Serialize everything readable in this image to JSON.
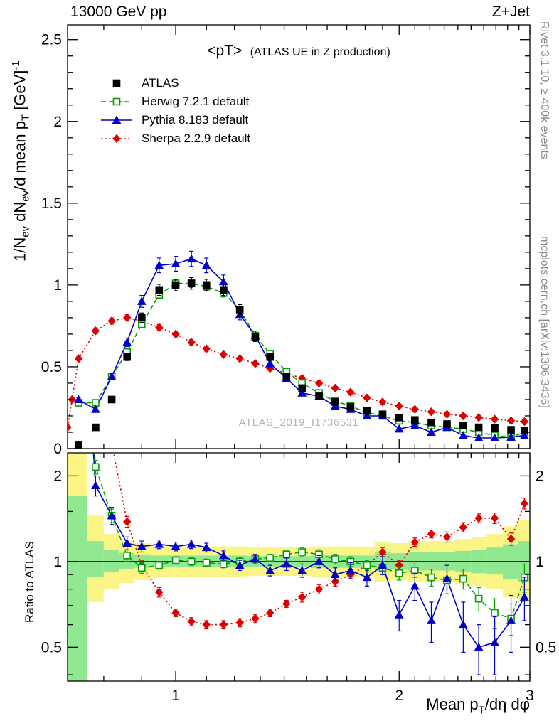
{
  "header": {
    "left": "13000 GeV pp",
    "right": "Z+Jet"
  },
  "side_texts": {
    "top_right": "Rivet 3.1.10, ≥ 400k events",
    "bottom_right": "mcplots.cern.ch [arXiv:1306.3436]"
  },
  "watermark": "ATLAS_2019_I1736531",
  "plot": {
    "title_main": "<pT>",
    "title_sub": "(ATLAS UE in Z production)",
    "ratio_ylabel": "Ratio to ATLAS",
    "ylabel_segments": [
      {
        "t": "1/N"
      },
      {
        "t": "ev",
        "style": "sub"
      },
      {
        "t": " dN"
      },
      {
        "t": "ev",
        "style": "sub"
      },
      {
        "t": "/d mean p"
      },
      {
        "t": "T",
        "style": "sub"
      },
      {
        "t": " [GeV]"
      },
      {
        "t": "-1",
        "style": "sup"
      }
    ],
    "xlabel_segments": [
      {
        "t": "Mean p"
      },
      {
        "t": "T",
        "style": "sub"
      },
      {
        "t": "/dη dφ"
      }
    ]
  },
  "chart_data": {
    "type": "line",
    "title": "<pT> (ATLAS UE in Z production)",
    "x_scale": "log",
    "xlim": [
      0.715,
      3.0
    ],
    "xticks": [
      {
        "label": "1",
        "v": 1
      },
      {
        "label": "2",
        "v": 2
      },
      {
        "label": "3",
        "v": 3
      }
    ],
    "x_minor": [
      0.8,
      0.9,
      1.1,
      1.2,
      1.3,
      1.4,
      1.5,
      1.6,
      1.7,
      1.8,
      1.9,
      2.1,
      2.2,
      2.3,
      2.4,
      2.5,
      2.6,
      2.7,
      2.8,
      2.9
    ],
    "top": {
      "ylim": [
        0,
        2.59
      ],
      "yticks": [
        {
          "label": "0",
          "v": 0
        },
        {
          "label": "0.5",
          "v": 0.5
        },
        {
          "label": "1",
          "v": 1
        },
        {
          "label": "1.5",
          "v": 1.5
        },
        {
          "label": "2",
          "v": 2
        },
        {
          "label": "2.5",
          "v": 2.5
        }
      ],
      "y_minor_step": 0.1
    },
    "ratio": {
      "scale": "log",
      "ylim": [
        0.38,
        2.41
      ],
      "ref": 1,
      "yticks": [
        {
          "label": "0.5",
          "v": 0.5
        },
        {
          "label": "1",
          "v": 1
        },
        {
          "label": "2",
          "v": 2
        }
      ],
      "y_minor": [
        0.4,
        0.6,
        0.7,
        0.8,
        0.9,
        1.5
      ]
    },
    "band_colors": {
      "outer": "#FAF584",
      "inner": "#90E890"
    },
    "bands": {
      "yellow_lo": [
        0.38,
        0.72,
        0.8,
        0.84,
        0.86,
        0.88,
        0.88,
        0.88,
        0.88,
        0.88,
        0.88,
        0.89,
        0.89,
        0.89,
        0.89,
        0.88,
        0.88,
        0.88,
        0.88,
        0.85,
        0.86,
        0.85,
        0.85,
        0.85,
        0.83,
        0.82,
        0.8,
        0.75,
        0.72
      ],
      "yellow_hi": [
        2.41,
        1.45,
        1.25,
        1.18,
        1.16,
        1.13,
        1.13,
        1.13,
        1.13,
        1.13,
        1.13,
        1.12,
        1.12,
        1.12,
        1.12,
        1.13,
        1.13,
        1.13,
        1.13,
        1.17,
        1.16,
        1.18,
        1.18,
        1.18,
        1.2,
        1.22,
        1.25,
        1.33,
        1.4
      ],
      "green_lo": [
        0.38,
        0.88,
        0.92,
        0.94,
        0.95,
        0.955,
        0.955,
        0.955,
        0.955,
        0.955,
        0.955,
        0.96,
        0.96,
        0.96,
        0.96,
        0.95,
        0.95,
        0.95,
        0.95,
        0.93,
        0.94,
        0.93,
        0.93,
        0.93,
        0.92,
        0.91,
        0.9,
        0.87,
        0.85
      ],
      "green_hi": [
        1.7,
        1.18,
        1.1,
        1.07,
        1.06,
        1.05,
        1.05,
        1.05,
        1.05,
        1.05,
        1.05,
        1.045,
        1.045,
        1.045,
        1.045,
        1.05,
        1.05,
        1.05,
        1.05,
        1.08,
        1.07,
        1.08,
        1.08,
        1.08,
        1.09,
        1.1,
        1.12,
        1.15,
        1.18
      ]
    },
    "series": [
      {
        "name": "ATLAS",
        "color": "#000000",
        "marker": "square",
        "marker_filled": true,
        "line": "none",
        "x": [
          0.74,
          0.78,
          0.82,
          0.86,
          0.9,
          0.95,
          1.0,
          1.05,
          1.1,
          1.16,
          1.22,
          1.28,
          1.34,
          1.41,
          1.48,
          1.56,
          1.64,
          1.72,
          1.81,
          1.9,
          2.0,
          2.1,
          2.21,
          2.32,
          2.44,
          2.56,
          2.69,
          2.83,
          2.95
        ],
        "y": [
          0.02,
          0.13,
          0.3,
          0.56,
          0.8,
          0.97,
          1.0,
          1.01,
          1.0,
          0.97,
          0.85,
          0.68,
          0.56,
          0.44,
          0.37,
          0.32,
          0.285,
          0.255,
          0.23,
          0.21,
          0.19,
          0.175,
          0.16,
          0.15,
          0.14,
          0.13,
          0.125,
          0.115,
          0.11
        ],
        "yerr_frac": 0.03
      },
      {
        "name": "Herwig 7.2.1 default",
        "color": "#00A000",
        "marker": "square",
        "marker_filled": false,
        "line": "dashed",
        "x": [
          0.74,
          0.78,
          0.82,
          0.86,
          0.9,
          0.95,
          1.0,
          1.05,
          1.1,
          1.16,
          1.22,
          1.28,
          1.34,
          1.41,
          1.48,
          1.56,
          1.64,
          1.72,
          1.81,
          1.9,
          2.0,
          2.1,
          2.21,
          2.32,
          2.44,
          2.56,
          2.69,
          2.83,
          2.95
        ],
        "y": [
          0.28,
          0.28,
          0.44,
          0.59,
          0.76,
          0.94,
          1.01,
          1.01,
          0.99,
          0.95,
          0.85,
          0.69,
          0.58,
          0.47,
          0.4,
          0.34,
          0.29,
          0.26,
          0.22,
          0.2,
          0.17,
          0.16,
          0.14,
          0.13,
          0.12,
          0.1,
          0.08,
          0.07,
          0.1
        ],
        "yerr_frac": 0.025,
        "ratio": [
          14,
          2.15,
          1.45,
          1.05,
          0.95,
          0.97,
          1.01,
          1.0,
          0.99,
          0.98,
          1.0,
          1.02,
          1.03,
          1.06,
          1.08,
          1.06,
          1.02,
          1.0,
          0.97,
          0.95,
          0.91,
          0.93,
          0.88,
          0.86,
          0.87,
          0.74,
          0.66,
          0.63,
          0.88
        ],
        "ratio_err": [
          0,
          0.12,
          0.08,
          0.05,
          0.04,
          0.03,
          0.03,
          0.03,
          0.03,
          0.03,
          0.03,
          0.03,
          0.03,
          0.03,
          0.04,
          0.04,
          0.04,
          0.04,
          0.04,
          0.05,
          0.05,
          0.05,
          0.06,
          0.06,
          0.07,
          0.07,
          0.08,
          0.08,
          0.1
        ]
      },
      {
        "name": "Pythia 8.183 default",
        "color": "#0000CC",
        "marker": "triangle",
        "marker_filled": true,
        "line": "solid",
        "x": [
          0.74,
          0.78,
          0.82,
          0.86,
          0.9,
          0.95,
          1.0,
          1.05,
          1.1,
          1.16,
          1.22,
          1.28,
          1.34,
          1.41,
          1.48,
          1.56,
          1.64,
          1.72,
          1.81,
          1.9,
          2.0,
          2.1,
          2.21,
          2.32,
          2.44,
          2.56,
          2.69,
          2.83,
          2.95
        ],
        "y": [
          0.3,
          0.24,
          0.44,
          0.65,
          0.9,
          1.12,
          1.13,
          1.16,
          1.12,
          1.02,
          0.82,
          0.69,
          0.52,
          0.43,
          0.34,
          0.32,
          0.26,
          0.24,
          0.2,
          0.2,
          0.12,
          0.14,
          0.1,
          0.13,
          0.08,
          0.065,
          0.065,
          0.07,
          0.08
        ],
        "yerr_frac": 0.04,
        "ratio": [
          15,
          1.85,
          1.45,
          1.16,
          1.13,
          1.15,
          1.13,
          1.15,
          1.12,
          1.05,
          0.97,
          1.02,
          0.93,
          0.98,
          0.93,
          1.0,
          0.9,
          0.93,
          0.88,
          0.97,
          0.65,
          0.82,
          0.62,
          0.87,
          0.6,
          0.5,
          0.52,
          0.62,
          0.75
        ],
        "ratio_err": [
          0,
          0.15,
          0.1,
          0.06,
          0.05,
          0.04,
          0.04,
          0.04,
          0.04,
          0.04,
          0.04,
          0.04,
          0.04,
          0.05,
          0.05,
          0.05,
          0.05,
          0.06,
          0.06,
          0.07,
          0.08,
          0.09,
          0.1,
          0.1,
          0.12,
          0.1,
          0.12,
          0.14,
          0.13
        ]
      },
      {
        "name": "Sherpa 2.2.9 default",
        "color": "#DD0000",
        "marker": "diamond",
        "marker_filled": true,
        "line": "dotted",
        "x": [
          0.715,
          0.725,
          0.74,
          0.78,
          0.82,
          0.86,
          0.9,
          0.95,
          1.0,
          1.05,
          1.1,
          1.16,
          1.22,
          1.28,
          1.34,
          1.41,
          1.48,
          1.56,
          1.64,
          1.72,
          1.81,
          1.9,
          2.0,
          2.1,
          2.21,
          2.32,
          2.44,
          2.56,
          2.69,
          2.83,
          2.95
        ],
        "y": [
          0.13,
          0.3,
          0.55,
          0.72,
          0.78,
          0.8,
          0.78,
          0.74,
          0.7,
          0.65,
          0.61,
          0.575,
          0.55,
          0.52,
          0.49,
          0.46,
          0.43,
          0.4,
          0.37,
          0.345,
          0.31,
          0.285,
          0.26,
          0.24,
          0.225,
          0.21,
          0.2,
          0.19,
          0.18,
          0.17,
          0.165
        ],
        "yerr_frac": 0.025,
        "ratio": [
          40,
          30,
          27,
          5.5,
          2.6,
          1.38,
          0.97,
          0.78,
          0.66,
          0.615,
          0.6,
          0.6,
          0.61,
          0.63,
          0.66,
          0.71,
          0.75,
          0.8,
          0.85,
          0.9,
          0.97,
          1.08,
          0.97,
          1.17,
          1.25,
          1.22,
          1.32,
          1.42,
          1.42,
          1.2,
          1.6
        ],
        "ratio_err": [
          0,
          0,
          0,
          0,
          0.1,
          0.06,
          0.04,
          0.03,
          0.02,
          0.02,
          0.02,
          0.02,
          0.02,
          0.02,
          0.02,
          0.02,
          0.03,
          0.03,
          0.03,
          0.03,
          0.03,
          0.04,
          0.04,
          0.04,
          0.04,
          0.05,
          0.05,
          0.05,
          0.06,
          0.06,
          0.07
        ]
      }
    ]
  }
}
